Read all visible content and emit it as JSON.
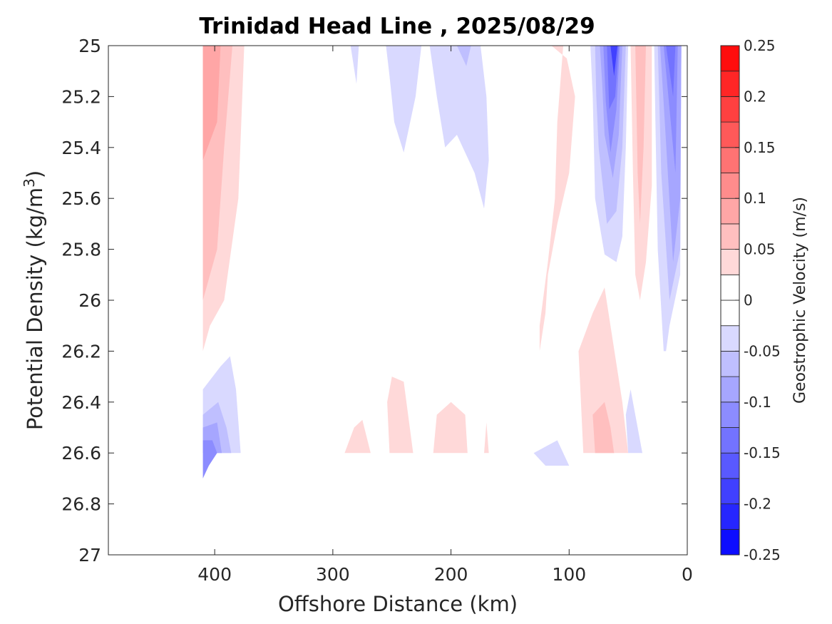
{
  "chart_data": {
    "type": "heatmap",
    "title": "Trinidad Head Line , 2025/08/29",
    "xlabel": "Offshore Distance (km)",
    "ylabel_main": "Potential Density (kg/m",
    "ylabel_sup": "3",
    "ylabel_end": ")",
    "xlim": [
      490,
      0
    ],
    "ylim": [
      25,
      27
    ],
    "x_reversed": true,
    "y_reversed": true,
    "xticks": [
      400,
      300,
      200,
      100,
      0
    ],
    "xtick_labels": [
      "400",
      "300",
      "200",
      "100",
      "0"
    ],
    "yticks": [
      25,
      25.2,
      25.4,
      25.6,
      25.8,
      26,
      26.2,
      26.4,
      26.6,
      26.8,
      27
    ],
    "ytick_labels": [
      "25",
      "25.2",
      "25.4",
      "25.6",
      "25.8",
      "26",
      "26.2",
      "26.4",
      "26.6",
      "26.8",
      "27"
    ],
    "colorbar": {
      "label": "Geostrophic Velocity (m/s)",
      "range": [
        -0.25,
        0.25
      ],
      "levels": [
        -0.25,
        -0.225,
        -0.2,
        -0.175,
        -0.15,
        -0.125,
        -0.1,
        -0.075,
        -0.05,
        -0.025,
        0,
        0.025,
        0.05,
        0.075,
        0.1,
        0.125,
        0.15,
        0.175,
        0.2,
        0.225,
        0.25
      ],
      "ticks": [
        0.25,
        0.2,
        0.15,
        0.1,
        0.05,
        0,
        -0.05,
        -0.1,
        -0.15,
        -0.2,
        -0.25
      ],
      "tick_labels": [
        "0.25",
        "0.2",
        "0.15",
        "0.1",
        "0.05",
        "0",
        "-0.05",
        "-0.1",
        "-0.15",
        "-0.2",
        "-0.25"
      ],
      "negative_color": "#0000ff",
      "zero_color": "#ffffff",
      "positive_color": "#ff0000"
    },
    "regions": [
      {
        "v": 0.03,
        "pts": [
          [
            410,
            25
          ],
          [
            375,
            25
          ],
          [
            380,
            25.6
          ],
          [
            392,
            26
          ],
          [
            404,
            26.1
          ],
          [
            410,
            26.2
          ]
        ]
      },
      {
        "v": 0.06,
        "pts": [
          [
            410,
            25
          ],
          [
            385,
            25
          ],
          [
            392,
            25.4
          ],
          [
            398,
            25.8
          ],
          [
            410,
            26
          ]
        ]
      },
      {
        "v": 0.09,
        "pts": [
          [
            410,
            25
          ],
          [
            395,
            25
          ],
          [
            398,
            25.3
          ],
          [
            410,
            25.45
          ]
        ]
      },
      {
        "v": -0.03,
        "pts": [
          [
            410,
            26.35
          ],
          [
            395,
            26.26
          ],
          [
            387,
            26.22
          ],
          [
            382,
            26.35
          ],
          [
            378,
            26.6
          ],
          [
            410,
            26.6
          ]
        ]
      },
      {
        "v": -0.06,
        "pts": [
          [
            410,
            26.45
          ],
          [
            397,
            26.4
          ],
          [
            390,
            26.5
          ],
          [
            386,
            26.6
          ],
          [
            410,
            26.6
          ]
        ]
      },
      {
        "v": -0.09,
        "pts": [
          [
            410,
            26.5
          ],
          [
            398,
            26.48
          ],
          [
            394,
            26.6
          ],
          [
            410,
            26.6
          ]
        ]
      },
      {
        "v": -0.12,
        "pts": [
          [
            410,
            26.55
          ],
          [
            402,
            26.55
          ],
          [
            398,
            26.6
          ],
          [
            405,
            26.65
          ],
          [
            410,
            26.7
          ]
        ]
      },
      {
        "v": 0.03,
        "pts": [
          [
            290,
            26.6
          ],
          [
            282,
            26.5
          ],
          [
            275,
            26.47
          ],
          [
            268,
            26.6
          ]
        ]
      },
      {
        "v": 0.03,
        "pts": [
          [
            252,
            26.6
          ],
          [
            254,
            26.4
          ],
          [
            250,
            26.3
          ],
          [
            240,
            26.32
          ],
          [
            232,
            26.6
          ]
        ]
      },
      {
        "v": 0.03,
        "pts": [
          [
            215,
            26.6
          ],
          [
            212,
            26.45
          ],
          [
            200,
            26.4
          ],
          [
            188,
            26.45
          ],
          [
            186,
            26.6
          ]
        ]
      },
      {
        "v": 0.03,
        "pts": [
          [
            172,
            26.6
          ],
          [
            170,
            26.48
          ],
          [
            168,
            26.6
          ]
        ]
      },
      {
        "v": -0.03,
        "pts": [
          [
            285,
            25
          ],
          [
            278,
            25
          ],
          [
            280,
            25.15
          ]
        ]
      },
      {
        "v": -0.03,
        "pts": [
          [
            255,
            25
          ],
          [
            225,
            25
          ],
          [
            230,
            25.2
          ],
          [
            240,
            25.42
          ],
          [
            248,
            25.3
          ],
          [
            252,
            25.12
          ]
        ]
      },
      {
        "v": -0.03,
        "pts": [
          [
            218,
            25
          ],
          [
            175,
            25
          ],
          [
            170,
            25.2
          ],
          [
            168,
            25.45
          ],
          [
            172,
            25.64
          ],
          [
            180,
            25.5
          ],
          [
            195,
            25.35
          ],
          [
            205,
            25.4
          ],
          [
            212,
            25.2
          ]
        ]
      },
      {
        "v": -0.06,
        "pts": [
          [
            195,
            25
          ],
          [
            183,
            25
          ],
          [
            187,
            25.08
          ]
        ]
      },
      {
        "v": 0.03,
        "pts": [
          [
            115,
            25
          ],
          [
            105,
            25
          ],
          [
            110,
            25.3
          ],
          [
            112,
            25.6
          ],
          [
            118,
            25.85
          ],
          [
            125,
            26.1
          ],
          [
            125,
            26.2
          ],
          [
            120,
            26.05
          ],
          [
            118,
            25.9
          ],
          [
            110,
            25.7
          ],
          [
            100,
            25.5
          ],
          [
            95,
            25.2
          ],
          [
            102,
            25.05
          ]
        ]
      },
      {
        "v": -0.03,
        "pts": [
          [
            100,
            26.65
          ],
          [
            110,
            26.55
          ],
          [
            130,
            26.6
          ],
          [
            120,
            26.65
          ]
        ]
      },
      {
        "v": 0.03,
        "pts": [
          [
            88,
            26.6
          ],
          [
            92,
            26.2
          ],
          [
            80,
            26.05
          ],
          [
            70,
            25.95
          ],
          [
            65,
            26.1
          ],
          [
            60,
            26.25
          ],
          [
            55,
            26.4
          ],
          [
            50,
            26.6
          ]
        ]
      },
      {
        "v": 0.06,
        "pts": [
          [
            78,
            26.6
          ],
          [
            80,
            26.45
          ],
          [
            70,
            26.4
          ],
          [
            65,
            26.5
          ],
          [
            62,
            26.6
          ]
        ]
      },
      {
        "v": -0.03,
        "pts": [
          [
            50,
            26.6
          ],
          [
            52,
            26.45
          ],
          [
            48,
            26.35
          ],
          [
            42,
            26.5
          ],
          [
            38,
            26.6
          ]
        ]
      },
      {
        "v": 0.03,
        "pts": [
          [
            48,
            25
          ],
          [
            30,
            25
          ],
          [
            30,
            25.55
          ],
          [
            35,
            25.85
          ],
          [
            40,
            26
          ],
          [
            44,
            25.9
          ],
          [
            46,
            25.5
          ]
        ]
      },
      {
        "v": 0.06,
        "pts": [
          [
            44,
            25
          ],
          [
            35,
            25
          ],
          [
            37,
            25.4
          ],
          [
            40,
            25.7
          ],
          [
            42,
            25.5
          ]
        ]
      },
      {
        "v": -0.03,
        "pts": [
          [
            82,
            25
          ],
          [
            50,
            25
          ],
          [
            52,
            25.4
          ],
          [
            55,
            25.75
          ],
          [
            60,
            25.85
          ],
          [
            70,
            25.82
          ],
          [
            78,
            25.6
          ],
          [
            80,
            25.2
          ]
        ]
      },
      {
        "v": -0.06,
        "pts": [
          [
            78,
            25
          ],
          [
            52,
            25
          ],
          [
            55,
            25.4
          ],
          [
            60,
            25.65
          ],
          [
            68,
            25.7
          ],
          [
            75,
            25.4
          ],
          [
            77,
            25.2
          ]
        ]
      },
      {
        "v": -0.09,
        "pts": [
          [
            74,
            25
          ],
          [
            55,
            25
          ],
          [
            58,
            25.35
          ],
          [
            63,
            25.52
          ],
          [
            70,
            25.35
          ],
          [
            72,
            25.15
          ]
        ]
      },
      {
        "v": -0.12,
        "pts": [
          [
            71,
            25
          ],
          [
            57,
            25
          ],
          [
            60,
            25.25
          ],
          [
            65,
            25.42
          ],
          [
            69,
            25.22
          ]
        ]
      },
      {
        "v": -0.15,
        "pts": [
          [
            68,
            25
          ],
          [
            58,
            25
          ],
          [
            61,
            25.2
          ],
          [
            66,
            25.25
          ]
        ]
      },
      {
        "v": -0.18,
        "pts": [
          [
            65,
            25
          ],
          [
            59,
            25
          ],
          [
            62,
            25.12
          ]
        ]
      },
      {
        "v": -0.03,
        "pts": [
          [
            28,
            25
          ],
          [
            5,
            25
          ],
          [
            6,
            25.9
          ],
          [
            15,
            26.1
          ],
          [
            18,
            26.2
          ],
          [
            20,
            26.2
          ],
          [
            25,
            25.8
          ],
          [
            27,
            25.3
          ]
        ]
      },
      {
        "v": -0.06,
        "pts": [
          [
            25,
            25
          ],
          [
            5,
            25
          ],
          [
            6,
            25.8
          ],
          [
            15,
            26
          ],
          [
            22,
            25.5
          ]
        ]
      },
      {
        "v": -0.09,
        "pts": [
          [
            23,
            25
          ],
          [
            5,
            25
          ],
          [
            6,
            25.6
          ],
          [
            12,
            25.85
          ],
          [
            19,
            25.3
          ]
        ]
      },
      {
        "v": -0.12,
        "pts": [
          [
            20,
            25
          ],
          [
            8,
            25
          ],
          [
            10,
            25.5
          ],
          [
            16,
            25.2
          ]
        ]
      },
      {
        "v": -0.15,
        "pts": [
          [
            18,
            25
          ],
          [
            10,
            25
          ],
          [
            12,
            25.2
          ]
        ]
      }
    ]
  }
}
